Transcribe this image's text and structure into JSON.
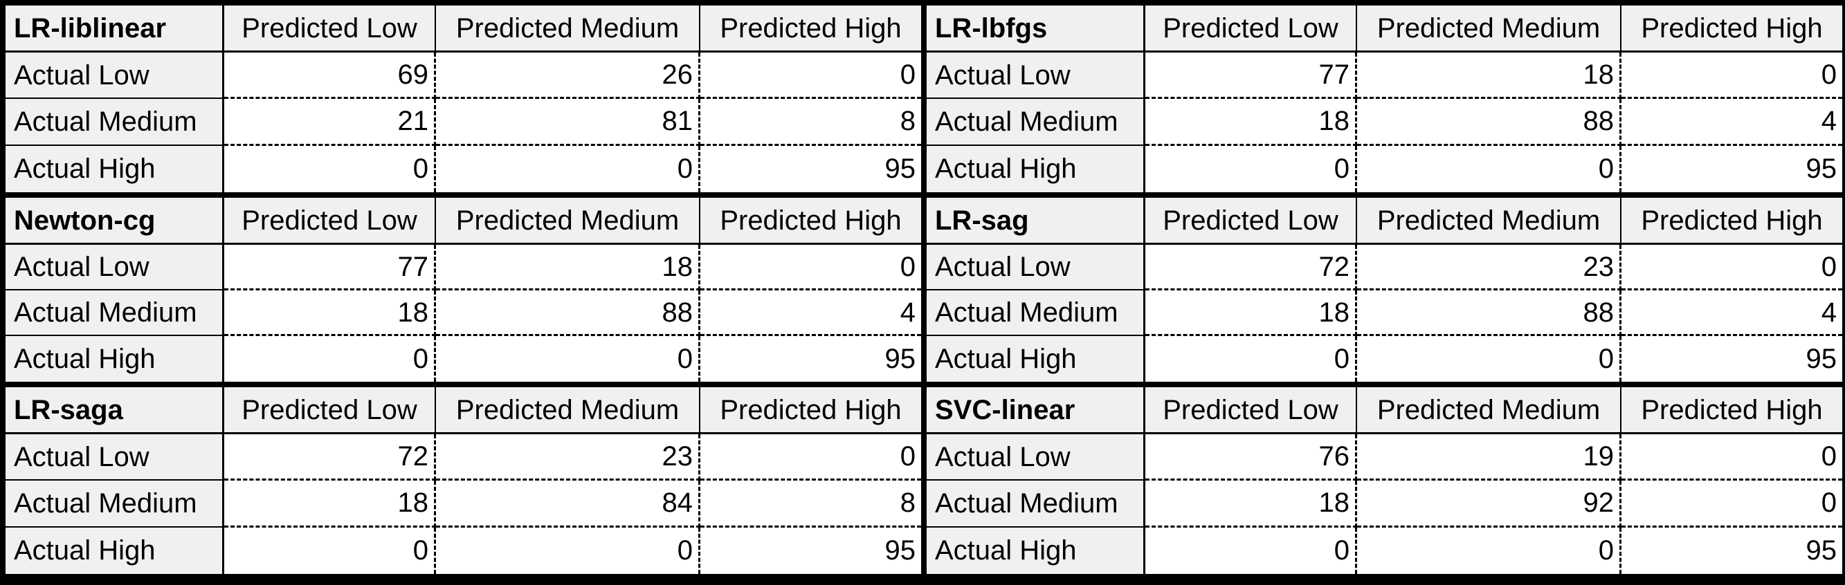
{
  "column_headers": [
    "Predicted Low",
    "Predicted Medium",
    "Predicted High"
  ],
  "row_labels": [
    "Actual Low",
    "Actual Medium",
    "Actual High"
  ],
  "matrices": [
    {
      "title": "LR-liblinear",
      "values": [
        [
          "69",
          "26",
          "0"
        ],
        [
          "21",
          "81",
          "8"
        ],
        [
          "0",
          "0",
          "95"
        ]
      ]
    },
    {
      "title": "LR-lbfgs",
      "values": [
        [
          "77",
          "18",
          "0"
        ],
        [
          "18",
          "88",
          "4"
        ],
        [
          "0",
          "0",
          "95"
        ]
      ]
    },
    {
      "title": "Newton-cg",
      "values": [
        [
          "77",
          "18",
          "0"
        ],
        [
          "18",
          "88",
          "4"
        ],
        [
          "0",
          "0",
          "95"
        ]
      ]
    },
    {
      "title": "LR-sag",
      "values": [
        [
          "72",
          "23",
          "0"
        ],
        [
          "18",
          "88",
          "4"
        ],
        [
          "0",
          "0",
          "95"
        ]
      ]
    },
    {
      "title": "LR-saga",
      "values": [
        [
          "72",
          "23",
          "0"
        ],
        [
          "18",
          "84",
          "8"
        ],
        [
          "0",
          "0",
          "95"
        ]
      ]
    },
    {
      "title": "SVC-linear",
      "values": [
        [
          "76",
          "19",
          "0"
        ],
        [
          "18",
          "92",
          "0"
        ],
        [
          "0",
          "0",
          "95"
        ]
      ]
    }
  ]
}
